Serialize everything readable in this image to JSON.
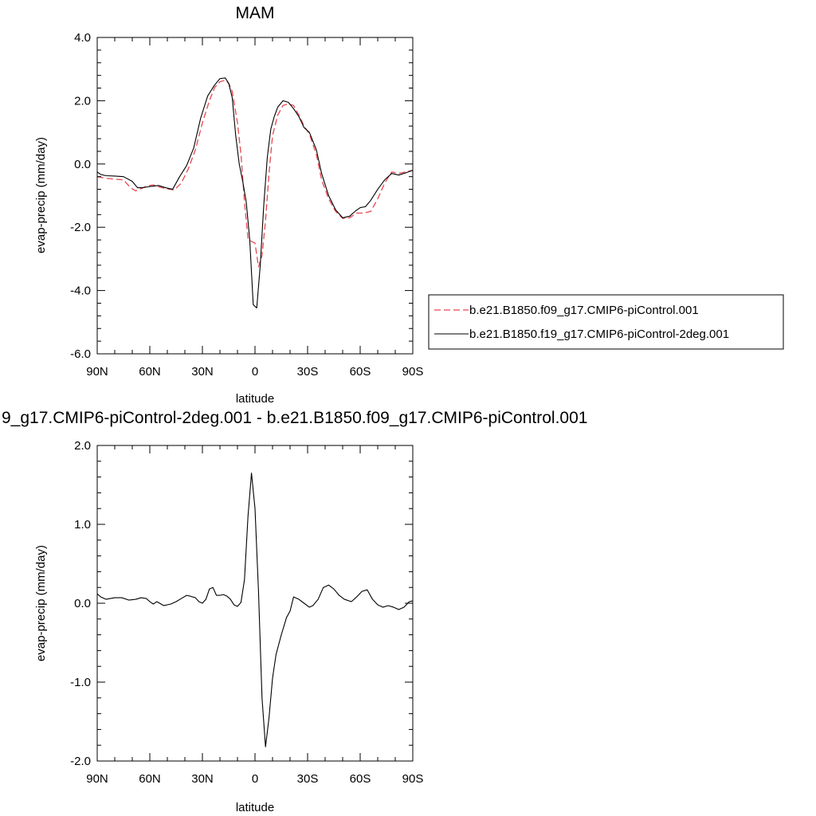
{
  "colors": {
    "series_a": "#e8474f",
    "series_b": "#000000",
    "axis": "#000000"
  },
  "chart_data": [
    {
      "type": "line",
      "title": "MAM",
      "xlabel": "latitude",
      "ylabel": "evap-precip (mm/day)",
      "xlim": [
        90,
        -90
      ],
      "ylim": [
        -6,
        4
      ],
      "xticks": [
        {
          "v": 90,
          "label": "90N"
        },
        {
          "v": 60,
          "label": "60N"
        },
        {
          "v": 30,
          "label": "30N"
        },
        {
          "v": 0,
          "label": "0"
        },
        {
          "v": -30,
          "label": "30S"
        },
        {
          "v": -60,
          "label": "60S"
        },
        {
          "v": -90,
          "label": "90S"
        }
      ],
      "yticks": [
        {
          "v": 4,
          "label": "4.0"
        },
        {
          "v": 2,
          "label": "2.0"
        },
        {
          "v": 0,
          "label": "0.0"
        },
        {
          "v": -2,
          "label": "-2.0"
        },
        {
          "v": -4,
          "label": "-4.0"
        },
        {
          "v": -6,
          "label": "-6.0"
        }
      ],
      "legend_position": "right",
      "series": [
        {
          "name": "b.e21.B1850.f09_g17.CMIP6-piControl.001",
          "color": "#e8474f",
          "dash": "dashed",
          "x": [
            90,
            85,
            80,
            75,
            71,
            68,
            65,
            62,
            58,
            55,
            51,
            46,
            42,
            38,
            34,
            30,
            26,
            23,
            20,
            17,
            15,
            13,
            10,
            8,
            6,
            4,
            2,
            0,
            -2,
            -4,
            -6,
            -8,
            -10,
            -13,
            -16,
            -19,
            -22,
            -25,
            -28,
            -31,
            -35,
            -38,
            -42,
            -46,
            -50,
            -54,
            -58,
            -62,
            -66,
            -70,
            -74,
            -78,
            -82,
            -86,
            -90
          ],
          "y": [
            -0.4,
            -0.45,
            -0.48,
            -0.5,
            -0.75,
            -0.85,
            -0.78,
            -0.7,
            -0.66,
            -0.72,
            -0.78,
            -0.82,
            -0.6,
            -0.15,
            0.45,
            1.3,
            2.0,
            2.42,
            2.6,
            2.65,
            2.55,
            2.3,
            1.3,
            0.3,
            -1.2,
            -2.35,
            -2.45,
            -2.5,
            -3.25,
            -2.9,
            -1.8,
            -0.3,
            0.9,
            1.55,
            1.85,
            1.9,
            1.85,
            1.55,
            1.2,
            0.95,
            0.3,
            -0.5,
            -1.1,
            -1.5,
            -1.72,
            -1.7,
            -1.55,
            -1.55,
            -1.5,
            -1.1,
            -0.6,
            -0.25,
            -0.3,
            -0.25,
            -0.2
          ]
        },
        {
          "name": "b.e21.B1850.f19_g17.CMIP6-piControl-2deg.001",
          "color": "#000000",
          "dash": "solid",
          "x": [
            90,
            88,
            85,
            80,
            75,
            70,
            67,
            64,
            61,
            58,
            55,
            51,
            47,
            43,
            39,
            35,
            31,
            27,
            23,
            20,
            17,
            15,
            13,
            11,
            9,
            7,
            5,
            3,
            1,
            -1,
            -3,
            -5,
            -7,
            -9,
            -11,
            -13,
            -16,
            -19,
            -22,
            -25,
            -28,
            -31,
            -35,
            -38,
            -42,
            -46,
            -50,
            -54,
            -57,
            -60,
            -63,
            -66,
            -70,
            -74,
            -78,
            -82,
            -86,
            -90
          ],
          "y": [
            -0.25,
            -0.33,
            -0.37,
            -0.38,
            -0.4,
            -0.55,
            -0.75,
            -0.75,
            -0.72,
            -0.7,
            -0.68,
            -0.75,
            -0.8,
            -0.4,
            -0.05,
            0.5,
            1.45,
            2.15,
            2.5,
            2.7,
            2.72,
            2.55,
            2.1,
            0.9,
            0.0,
            -0.55,
            -1.2,
            -2.4,
            -4.45,
            -4.55,
            -3.2,
            -1.3,
            0.2,
            1.1,
            1.5,
            1.8,
            2.0,
            1.95,
            1.75,
            1.5,
            1.15,
            1.0,
            0.45,
            -0.3,
            -1.0,
            -1.45,
            -1.7,
            -1.65,
            -1.5,
            -1.38,
            -1.35,
            -1.15,
            -0.8,
            -0.5,
            -0.3,
            -0.35,
            -0.28,
            -0.2
          ]
        }
      ]
    },
    {
      "type": "line",
      "title": "9_g17.CMIP6-piControl-2deg.001 - b.e21.B1850.f09_g17.CMIP6-piControl.001",
      "xlabel": "latitude",
      "ylabel": "evap-precip (mm/day)",
      "xlim": [
        90,
        -90
      ],
      "ylim": [
        -2,
        2
      ],
      "xticks": [
        {
          "v": 90,
          "label": "90N"
        },
        {
          "v": 60,
          "label": "60N"
        },
        {
          "v": 30,
          "label": "30N"
        },
        {
          "v": 0,
          "label": "0"
        },
        {
          "v": -30,
          "label": "30S"
        },
        {
          "v": -60,
          "label": "60S"
        },
        {
          "v": -90,
          "label": "90S"
        }
      ],
      "yticks": [
        {
          "v": 2,
          "label": "2.0"
        },
        {
          "v": 1,
          "label": "1.0"
        },
        {
          "v": 0,
          "label": "0.0"
        },
        {
          "v": -1,
          "label": "-1.0"
        },
        {
          "v": -2,
          "label": "-2.0"
        }
      ],
      "series": [
        {
          "color": "#000000",
          "dash": "solid",
          "x": [
            90,
            88,
            85,
            80,
            76,
            72,
            68,
            65,
            62,
            60,
            58,
            56,
            52,
            48,
            45,
            42,
            39,
            37,
            34,
            32,
            30,
            28,
            26,
            24,
            22,
            20,
            18,
            16,
            14,
            12,
            10,
            8,
            6,
            4,
            2,
            0,
            -2,
            -4,
            -6,
            -8,
            -10,
            -12,
            -15,
            -18,
            -20,
            -22,
            -25,
            -28,
            -31,
            -33,
            -36,
            -39,
            -42,
            -45,
            -48,
            -51,
            -55,
            -58,
            -61,
            -64,
            -67,
            -70,
            -73,
            -76,
            -79,
            -82,
            -85,
            -88,
            -90
          ],
          "y": [
            0.12,
            0.08,
            0.05,
            0.07,
            0.07,
            0.04,
            0.05,
            0.07,
            0.06,
            0.02,
            -0.01,
            0.02,
            -0.03,
            -0.01,
            0.02,
            0.06,
            0.1,
            0.09,
            0.07,
            0.02,
            0.0,
            0.05,
            0.18,
            0.2,
            0.1,
            0.1,
            0.11,
            0.09,
            0.05,
            -0.02,
            -0.04,
            0.01,
            0.3,
            1.1,
            1.65,
            1.2,
            0.15,
            -1.2,
            -1.82,
            -1.45,
            -0.95,
            -0.65,
            -0.4,
            -0.18,
            -0.1,
            0.08,
            0.05,
            0.0,
            -0.05,
            -0.03,
            0.05,
            0.2,
            0.23,
            0.18,
            0.1,
            0.05,
            0.02,
            0.08,
            0.15,
            0.17,
            0.05,
            -0.02,
            -0.05,
            -0.03,
            -0.05,
            -0.08,
            -0.05,
            0.02,
            0.03
          ]
        }
      ]
    }
  ]
}
